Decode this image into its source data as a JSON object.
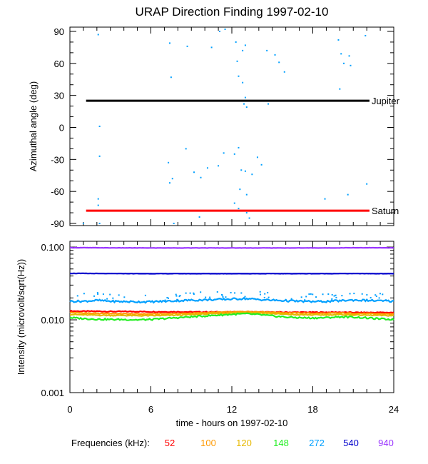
{
  "chart_data": [
    {
      "type": "scatter",
      "title": "URAP Direction Finding  1997-02-10",
      "ylabel": "Azimuthal angle (deg)",
      "xlim": [
        0,
        24
      ],
      "ylim": [
        -92,
        94
      ],
      "yticks": [
        90,
        60,
        30,
        0,
        -30,
        -60,
        -90
      ],
      "reference_lines": [
        {
          "name": "Jupiter",
          "y": 25,
          "x_range": [
            1.2,
            22.2
          ],
          "color": "#000000"
        },
        {
          "name": "Saturn",
          "y": -78,
          "x_range": [
            1.2,
            22.2
          ],
          "color": "#ff0000"
        }
      ],
      "series": [
        {
          "color": "#00a0ff",
          "points": [
            [
              1.0,
              -90
            ],
            [
              2.1,
              87
            ],
            [
              2.2,
              1
            ],
            [
              2.2,
              -27
            ],
            [
              2.1,
              -67
            ],
            [
              2.1,
              -73
            ],
            [
              2.2,
              -90
            ],
            [
              7.4,
              79
            ],
            [
              7.5,
              47
            ],
            [
              7.3,
              -33
            ],
            [
              7.4,
              -52
            ],
            [
              7.6,
              -48
            ],
            [
              7.7,
              -90
            ],
            [
              8.7,
              76
            ],
            [
              8.6,
              -20
            ],
            [
              9.2,
              -42
            ],
            [
              9.7,
              -47
            ],
            [
              9.6,
              -84
            ],
            [
              10.2,
              -38
            ],
            [
              10.5,
              75
            ],
            [
              11.1,
              90
            ],
            [
              11.5,
              92
            ],
            [
              11.0,
              -36
            ],
            [
              11.4,
              -24
            ],
            [
              12.3,
              80
            ],
            [
              12.8,
              72
            ],
            [
              13.0,
              77
            ],
            [
              12.4,
              62
            ],
            [
              12.5,
              48
            ],
            [
              12.8,
              42
            ],
            [
              13.0,
              28
            ],
            [
              12.9,
              22
            ],
            [
              13.1,
              19
            ],
            [
              12.2,
              -25
            ],
            [
              12.5,
              -19
            ],
            [
              12.7,
              -40
            ],
            [
              13.0,
              -41
            ],
            [
              12.6,
              -58
            ],
            [
              13.1,
              -63
            ],
            [
              12.2,
              -71
            ],
            [
              12.5,
              -76
            ],
            [
              13.1,
              -80
            ],
            [
              13.3,
              -85
            ],
            [
              13.5,
              -44
            ],
            [
              13.9,
              -28
            ],
            [
              14.2,
              -35
            ],
            [
              14.7,
              22
            ],
            [
              15.2,
              68
            ],
            [
              15.5,
              61
            ],
            [
              15.9,
              52
            ],
            [
              14.6,
              72
            ],
            [
              18.9,
              -67
            ],
            [
              19.9,
              82
            ],
            [
              20.1,
              69
            ],
            [
              20.0,
              36
            ],
            [
              20.3,
              60
            ],
            [
              20.7,
              67
            ],
            [
              20.8,
              58
            ],
            [
              20.6,
              -63
            ],
            [
              21.9,
              86
            ],
            [
              22.0,
              -53
            ]
          ]
        }
      ]
    },
    {
      "type": "line",
      "ylabel": "Intensity (microvolt/sqrt(Hz))",
      "xlabel": "time - hours on 1997-02-10",
      "xlim": [
        0,
        24
      ],
      "xticks": [
        0,
        6,
        12,
        18,
        24
      ],
      "yscale": "log",
      "ylim": [
        0.001,
        0.12
      ],
      "yticks": [
        "0.001",
        "0.010",
        "0.100"
      ],
      "legend_label": "Frequencies (kHz):",
      "series": [
        {
          "name": "52",
          "color": "#ff0000",
          "values": [
            0.0132,
            0.0131,
            0.0131,
            0.013,
            0.013,
            0.013,
            0.0129,
            0.0129,
            0.0129,
            0.0128,
            0.0128,
            0.0128,
            0.0128,
            0.0128,
            0.0128,
            0.0127,
            0.0127,
            0.0127,
            0.0127,
            0.0127,
            0.0127,
            0.0126,
            0.0126,
            0.0126,
            0.0126
          ]
        },
        {
          "name": "100",
          "color": "#ff9900",
          "values": [
            0.0126,
            0.0124,
            0.0122,
            0.0122,
            0.0121,
            0.012,
            0.012,
            0.0121,
            0.0122,
            0.0123,
            0.0125,
            0.0127,
            0.0128,
            0.013,
            0.0129,
            0.0127,
            0.0125,
            0.0124,
            0.0123,
            0.0123,
            0.0124,
            0.0123,
            0.0122,
            0.0121,
            0.012
          ]
        },
        {
          "name": "120",
          "color": "#e6b800",
          "values": [
            0.0119,
            0.0117,
            0.0116,
            0.0115,
            0.0115,
            0.0114,
            0.0114,
            0.0115,
            0.0116,
            0.0118,
            0.012,
            0.0122,
            0.0124,
            0.0126,
            0.0125,
            0.0122,
            0.0119,
            0.0117,
            0.0117,
            0.0117,
            0.0118,
            0.0117,
            0.0116,
            0.0115,
            0.0114
          ]
        },
        {
          "name": "148",
          "color": "#22ee22",
          "values": [
            0.0107,
            0.0104,
            0.0102,
            0.0101,
            0.0101,
            0.01,
            0.0101,
            0.0104,
            0.0107,
            0.011,
            0.0113,
            0.0116,
            0.0119,
            0.0121,
            0.0118,
            0.0113,
            0.0109,
            0.0107,
            0.0106,
            0.0107,
            0.011,
            0.0109,
            0.0106,
            0.0103,
            0.0101
          ]
        },
        {
          "name": "272",
          "color": "#00a0ff",
          "values": [
            0.018,
            0.018,
            0.0185,
            0.018,
            0.0178,
            0.0177,
            0.0177,
            0.018,
            0.0183,
            0.0186,
            0.0188,
            0.019,
            0.0193,
            0.0196,
            0.019,
            0.0186,
            0.0183,
            0.018,
            0.0178,
            0.0179,
            0.0183,
            0.0187,
            0.0185,
            0.0182,
            0.018
          ]
        },
        {
          "name": "540",
          "color": "#0000cc",
          "values": [
            0.0435,
            0.0434,
            0.0433,
            0.0432,
            0.0432,
            0.0431,
            0.0431,
            0.0431,
            0.0431,
            0.0431,
            0.0431,
            0.0431,
            0.0431,
            0.0431,
            0.0431,
            0.0431,
            0.0431,
            0.0431,
            0.0431,
            0.0431,
            0.0432,
            0.0432,
            0.0432,
            0.0431,
            0.0431
          ]
        },
        {
          "name": "940",
          "color": "#9933ff",
          "values": [
            0.098,
            0.0979,
            0.0977,
            0.0975,
            0.0974,
            0.0973,
            0.0972,
            0.0972,
            0.0972,
            0.0972,
            0.0972,
            0.0972,
            0.0972,
            0.0972,
            0.0972,
            0.0972,
            0.0972,
            0.0972,
            0.0972,
            0.0972,
            0.0974,
            0.0979,
            0.0978,
            0.0976,
            0.0975
          ]
        }
      ]
    }
  ]
}
